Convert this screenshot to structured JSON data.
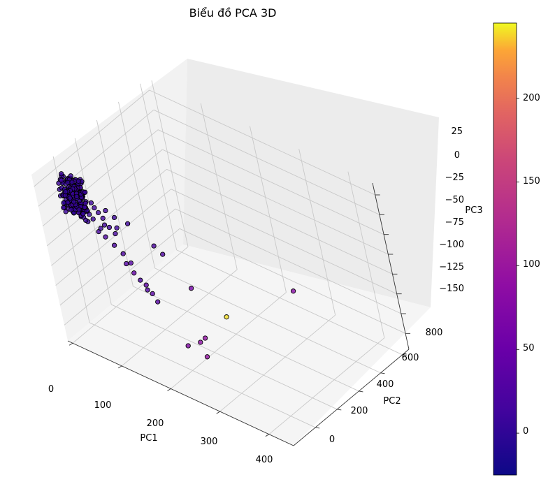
{
  "chart_data": {
    "type": "scatter",
    "projection": "3d",
    "title": "Biểu đồ PCA 3D",
    "xlabel": "PC1",
    "ylabel": "PC2",
    "zlabel": "PC3",
    "xlim": [
      -10,
      450
    ],
    "ylim": [
      -200,
      860
    ],
    "zlim": [
      -170,
      40
    ],
    "xticks": [
      "0",
      "100",
      "200",
      "300",
      "400"
    ],
    "yticks": [
      "0",
      "200",
      "400",
      "600",
      "800"
    ],
    "zticks": [
      "25",
      "0",
      "−25",
      "−50",
      "−75",
      "−100",
      "−125",
      "−150"
    ],
    "colormap": "plasma",
    "colorbar": {
      "min": -25,
      "max": 245,
      "ticks": [
        "0",
        "50",
        "100",
        "150",
        "200"
      ]
    },
    "grid": true,
    "points_note": "dense cluster near PC1≈0, PC2≈0, PC3≈0 plus outliers",
    "points": [
      {
        "x": 178,
        "y": 430,
        "z": -158,
        "c": 240
      },
      {
        "x": 310,
        "y": 540,
        "z": -100,
        "c": 80
      },
      {
        "x": 150,
        "y": 300,
        "z": -115,
        "c": 60
      },
      {
        "x": 195,
        "y": 170,
        "z": -150,
        "c": 90
      },
      {
        "x": 188,
        "y": 150,
        "z": -155,
        "c": 85
      },
      {
        "x": 205,
        "y": 120,
        "z": -165,
        "c": 95
      },
      {
        "x": 170,
        "y": 110,
        "z": -160,
        "c": 75
      },
      {
        "x": 120,
        "y": 120,
        "z": -120,
        "c": 30
      },
      {
        "x": 115,
        "y": 110,
        "z": -110,
        "c": 35
      },
      {
        "x": 108,
        "y": 100,
        "z": -100,
        "c": 40
      },
      {
        "x": 95,
        "y": 70,
        "z": -85,
        "c": 45
      },
      {
        "x": 85,
        "y": 60,
        "z": -75,
        "c": 30
      },
      {
        "x": 100,
        "y": 90,
        "z": -95,
        "c": 20
      },
      {
        "x": 110,
        "y": 95,
        "z": -105,
        "c": 25
      },
      {
        "x": 90,
        "y": 80,
        "z": -75,
        "c": 30
      },
      {
        "x": 80,
        "y": 70,
        "z": -65,
        "c": 25
      },
      {
        "x": 70,
        "y": 50,
        "z": -55,
        "c": 20
      },
      {
        "x": 60,
        "y": 30,
        "z": -45,
        "c": 25
      },
      {
        "x": 50,
        "y": 20,
        "z": -40,
        "c": 15
      },
      {
        "x": 55,
        "y": 25,
        "z": -35,
        "c": 10
      },
      {
        "x": 90,
        "y": 30,
        "z": -25,
        "c": 12
      },
      {
        "x": 105,
        "y": 70,
        "z": -20,
        "c": 10
      },
      {
        "x": 85,
        "y": 45,
        "z": -15,
        "c": 8
      },
      {
        "x": 70,
        "y": 40,
        "z": -10,
        "c": 12
      },
      {
        "x": 45,
        "y": 15,
        "z": -25,
        "c": 10
      },
      {
        "x": 40,
        "y": 10,
        "z": -20,
        "c": 5
      },
      {
        "x": 35,
        "y": 5,
        "z": -30,
        "c": 8
      },
      {
        "x": 30,
        "y": 20,
        "z": -15,
        "c": 6
      },
      {
        "x": 25,
        "y": 30,
        "z": -5,
        "c": 4
      },
      {
        "x": 20,
        "y": 15,
        "z": 0,
        "c": 3
      },
      {
        "x": 15,
        "y": 10,
        "z": 5,
        "c": 2
      },
      {
        "x": 10,
        "y": 5,
        "z": 2,
        "c": 1
      },
      {
        "x": 5,
        "y": 0,
        "z": 0,
        "c": 0
      },
      {
        "x": 8,
        "y": -5,
        "z": -5,
        "c": 1
      },
      {
        "x": 12,
        "y": -10,
        "z": -8,
        "c": 2
      },
      {
        "x": 18,
        "y": -5,
        "z": -12,
        "c": 3
      },
      {
        "x": 22,
        "y": 0,
        "z": -18,
        "c": 4
      },
      {
        "x": 28,
        "y": 5,
        "z": -22,
        "c": 5
      },
      {
        "x": 33,
        "y": -3,
        "z": -28,
        "c": 6
      },
      {
        "x": 3,
        "y": 8,
        "z": 8,
        "c": 0
      },
      {
        "x": 6,
        "y": 15,
        "z": 10,
        "c": 1
      },
      {
        "x": 14,
        "y": 20,
        "z": 12,
        "c": 2
      },
      {
        "x": 2,
        "y": -8,
        "z": 3,
        "c": 0
      },
      {
        "x": 0,
        "y": 2,
        "z": -2,
        "c": 0
      },
      {
        "x": 4,
        "y": 12,
        "z": -10,
        "c": 1
      },
      {
        "x": 9,
        "y": 18,
        "z": -14,
        "c": 2
      },
      {
        "x": 16,
        "y": 25,
        "z": -6,
        "c": 3
      },
      {
        "x": 24,
        "y": 35,
        "z": -2,
        "c": 4
      },
      {
        "x": 32,
        "y": 28,
        "z": 4,
        "c": 6
      },
      {
        "x": 38,
        "y": 22,
        "z": 6,
        "c": 7
      },
      {
        "x": 42,
        "y": 38,
        "z": -8,
        "c": 9
      },
      {
        "x": 48,
        "y": 33,
        "z": -12,
        "c": 10
      },
      {
        "x": 52,
        "y": 42,
        "z": -18,
        "c": 12
      },
      {
        "x": 58,
        "y": 48,
        "z": -24,
        "c": 13
      },
      {
        "x": 62,
        "y": 36,
        "z": -30,
        "c": 14
      },
      {
        "x": 66,
        "y": 55,
        "z": -34,
        "c": 16
      },
      {
        "x": 75,
        "y": 60,
        "z": -40,
        "c": 18
      },
      {
        "x": 130,
        "y": 150,
        "z": -50,
        "c": 22
      },
      {
        "x": 140,
        "y": 170,
        "z": -60,
        "c": 24
      }
    ]
  }
}
